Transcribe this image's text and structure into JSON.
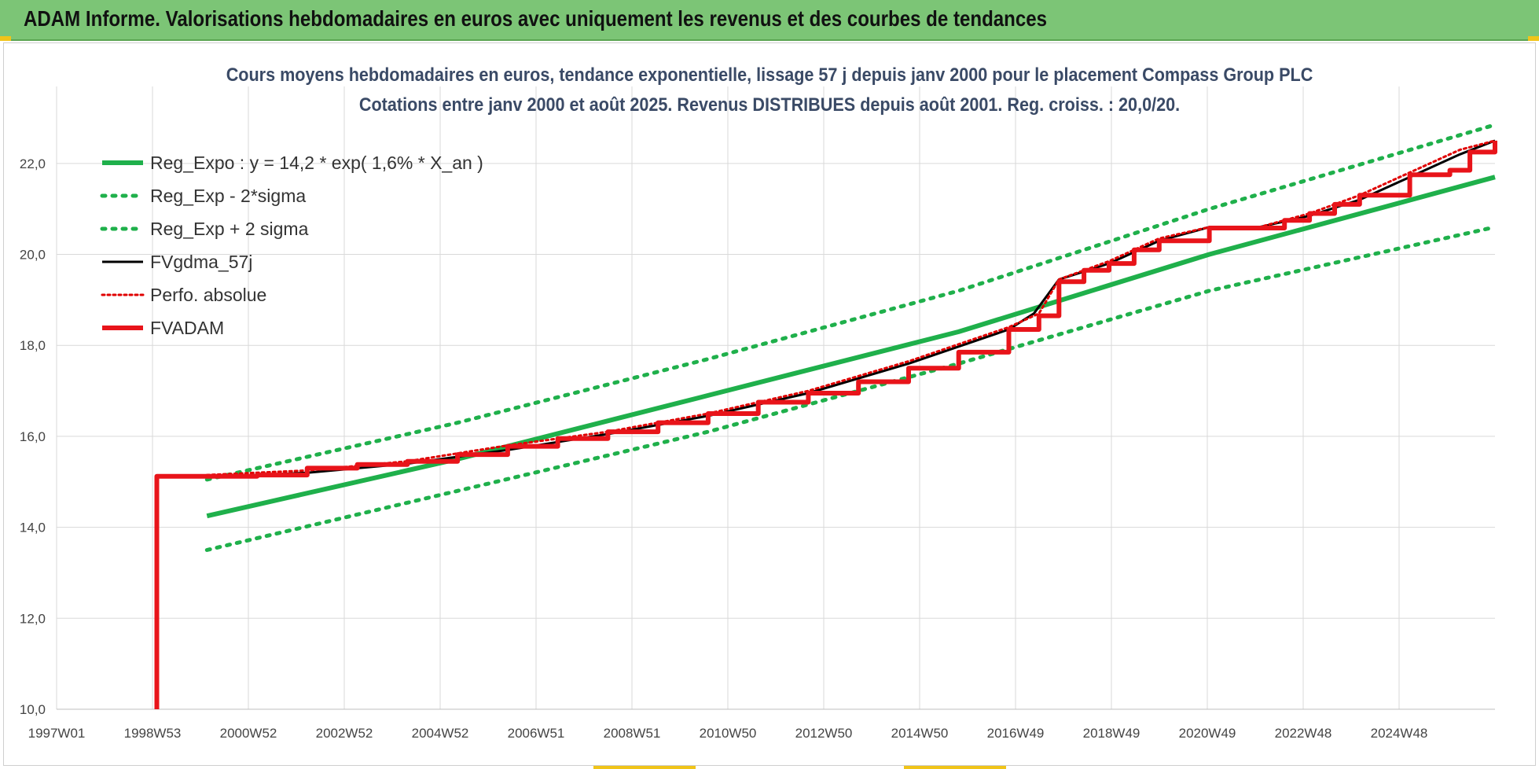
{
  "header": {
    "title": "ADAM Informe. Valorisations hebdomadaires en euros avec uniquement les revenus et des courbes de tendances"
  },
  "chart_data": {
    "type": "line",
    "title": "Cours moyens hebdomadaires en euros, tendance exponentielle, lissage 57 j depuis janv 2000  pour le placement Compass Group PLC",
    "subtitle": "Cotations entre janv 2000 et août 2025. Revenus DISTRIBUES depuis août 2001. Reg. croiss. : 20,0/20.",
    "xlabel": "",
    "ylabel": "",
    "x_tick_labels": [
      "1997W01",
      "1998W53",
      "2000W52",
      "2002W52",
      "2004W52",
      "2006W51",
      "2008W51",
      "2010W50",
      "2012W50",
      "2014W50",
      "2016W49",
      "2018W49",
      "2020W49",
      "2022W48",
      "2024W48"
    ],
    "xlim": [
      1997.0,
      2025.7
    ],
    "ylim": [
      10,
      23
    ],
    "y_ticks": [
      "10,0",
      "12,0",
      "14,0",
      "16,0",
      "18,0",
      "20,0",
      "22,0"
    ],
    "grid": true,
    "legend_position": "top-left",
    "series": [
      {
        "name": "Reg_Expo : y = 14,2 * exp( 1,6% *  X_an )",
        "style": "solid",
        "color": "#1fb04b",
        "x": [
          2000.0,
          2005.0,
          2010.0,
          2015.0,
          2020.0,
          2025.7
        ],
        "y": [
          14.25,
          15.5,
          16.9,
          18.3,
          20.0,
          21.7
        ]
      },
      {
        "name": "Reg_Exp - 2*sigma",
        "style": "dotted",
        "color": "#1fb04b",
        "x": [
          2000.0,
          2005.0,
          2010.0,
          2015.0,
          2020.0,
          2025.7
        ],
        "y": [
          13.5,
          14.8,
          16.1,
          17.6,
          19.2,
          20.6
        ]
      },
      {
        "name": "Reg_Exp + 2 sigma",
        "style": "dotted",
        "color": "#1fb04b",
        "x": [
          2000.0,
          2005.0,
          2010.0,
          2015.0,
          2020.0,
          2025.7
        ],
        "y": [
          15.05,
          16.3,
          17.7,
          19.2,
          21.0,
          22.85
        ]
      },
      {
        "name": "FVgdma_57j",
        "style": "solid-thin",
        "color": "#000000",
        "x": [
          2000.0,
          2002.0,
          2004.0,
          2006.0,
          2008.0,
          2010.0,
          2012.0,
          2014.0,
          2016.0,
          2016.5,
          2017.0,
          2018.0,
          2019.0,
          2020.0,
          2021.0,
          2022.0,
          2023.0,
          2024.0,
          2025.0,
          2025.7
        ],
        "y": [
          15.1,
          15.2,
          15.4,
          15.7,
          16.05,
          16.45,
          16.95,
          17.6,
          18.35,
          18.7,
          19.45,
          19.8,
          20.3,
          20.6,
          20.6,
          20.85,
          21.2,
          21.7,
          22.2,
          22.5
        ]
      },
      {
        "name": "Perfo. absolue",
        "style": "dotted",
        "color": "#e00000",
        "x": [
          2000.0,
          2002.0,
          2004.0,
          2006.0,
          2008.0,
          2010.0,
          2012.0,
          2014.0,
          2016.0,
          2016.6,
          2017.0,
          2018.0,
          2019.0,
          2020.0,
          2021.0,
          2022.0,
          2023.0,
          2024.0,
          2025.0,
          2025.7
        ],
        "y": [
          15.15,
          15.25,
          15.45,
          15.8,
          16.1,
          16.5,
          17.0,
          17.65,
          18.4,
          18.7,
          19.45,
          19.85,
          20.35,
          20.6,
          20.6,
          20.9,
          21.3,
          21.8,
          22.3,
          22.5
        ]
      },
      {
        "name": "FVADAM",
        "style": "solid",
        "color": "#e8141a",
        "x": [
          1999.0,
          1999.0,
          2001.0,
          2002.0,
          2003.0,
          2004.0,
          2005.0,
          2006.0,
          2007.0,
          2008.0,
          2009.0,
          2010.0,
          2011.0,
          2012.0,
          2013.0,
          2014.0,
          2015.0,
          2016.0,
          2016.6,
          2017.0,
          2017.5,
          2018.0,
          2018.5,
          2019.0,
          2020.0,
          2021.0,
          2021.5,
          2022.0,
          2022.5,
          2023.0,
          2024.0,
          2024.8,
          2025.2,
          2025.7
        ],
        "y": [
          10.0,
          15.12,
          15.15,
          15.3,
          15.38,
          15.45,
          15.6,
          15.78,
          15.95,
          16.1,
          16.3,
          16.5,
          16.75,
          16.95,
          17.2,
          17.5,
          17.85,
          18.35,
          18.65,
          19.4,
          19.65,
          19.8,
          20.1,
          20.3,
          20.58,
          20.58,
          20.75,
          20.9,
          21.1,
          21.3,
          21.75,
          21.85,
          22.25,
          22.5
        ]
      }
    ]
  }
}
